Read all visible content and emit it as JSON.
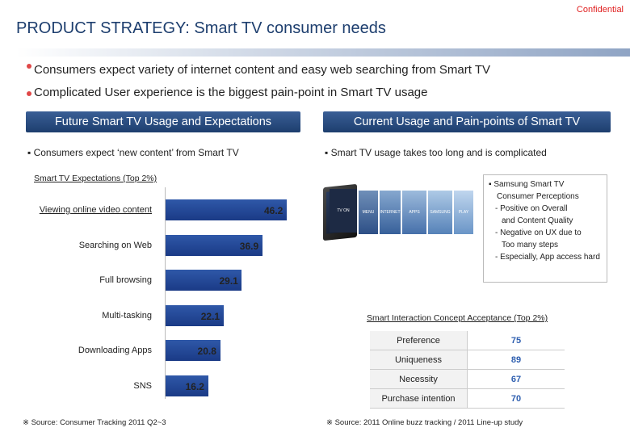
{
  "confidential": "Confidential",
  "title": "PRODUCT STRATEGY:  Smart TV consumer needs",
  "bullets": [
    "Consumers expect variety of internet content and easy web searching from Smart TV",
    "Complicated User experience is the biggest pain-point in Smart TV usage"
  ],
  "left": {
    "header": "Future Smart TV Usage and Expectations",
    "subtitle": "Consumers expect ‘new content’ from Smart TV",
    "chart_title": "Smart TV Expectations (Top 2%)",
    "source": "※ Source: Consumer Tracking 2011 Q2~3"
  },
  "right": {
    "header": "Current Usage and Pain-points of Smart TV",
    "subtitle": "Smart TV usage takes too long and is complicated",
    "screens": [
      "TV ON",
      "MENU",
      "INTERNET TV",
      "APPS",
      "SAMSUNG",
      "PLAY"
    ],
    "perception": {
      "title": "Samsung  Smart TV",
      "title2": "Consumer Perceptions",
      "l1": "- Positive on Overall",
      "l2": "and Content Quality",
      "l3": "- Negative on UX due to",
      "l4": "Too many steps",
      "l5": "- Especially, App access hard"
    },
    "table_title": "Smart Interaction Concept Acceptance (Top 2%)",
    "table": [
      {
        "label": "Preference",
        "value": "75"
      },
      {
        "label": "Uniqueness",
        "value": "89"
      },
      {
        "label": "Necessity",
        "value": "67"
      },
      {
        "label": "Purchase intention",
        "value": "70"
      }
    ],
    "source": "※ Source: 2011 Online buzz tracking / 2011 Line-up study"
  },
  "chart_data": {
    "type": "bar",
    "orientation": "horizontal",
    "title": "Smart TV Expectations (Top 2%)",
    "categories": [
      "Viewing online video content",
      "Searching on Web",
      "Full browsing",
      "Multi-tasking",
      "Downloading Apps",
      "SNS"
    ],
    "values": [
      46.2,
      36.9,
      29.1,
      22.1,
      20.8,
      16.2
    ],
    "labels": [
      "46.2",
      "36.9",
      "29.1",
      "22.1",
      "20.8",
      "16.2"
    ],
    "xlim": [
      0,
      46.2
    ],
    "color": "#1f3f8e"
  },
  "colors": {
    "accent": "#1d3e6e",
    "alert": "#e02020",
    "bar": "#1f3f8e"
  }
}
